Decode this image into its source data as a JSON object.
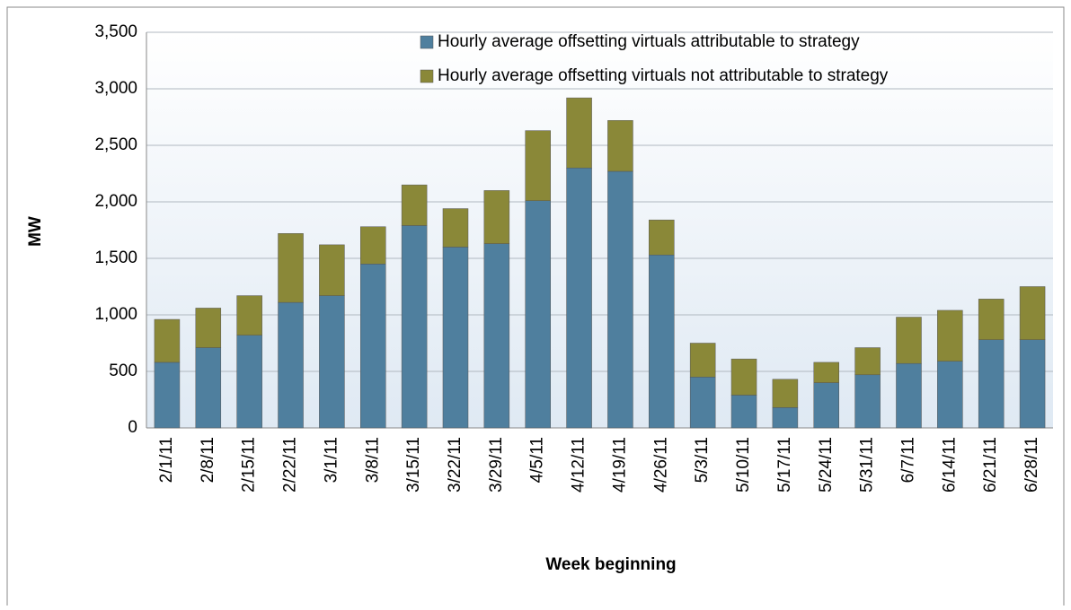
{
  "chart_data": {
    "type": "stacked_bar",
    "x_label": "Week beginning",
    "y_label": "MW",
    "categories": [
      "2/1/11",
      "2/8/11",
      "2/15/11",
      "2/22/11",
      "3/1/11",
      "3/8/11",
      "3/15/11",
      "3/22/11",
      "3/29/11",
      "4/5/11",
      "4/12/11",
      "4/19/11",
      "4/26/11",
      "5/3/11",
      "5/10/11",
      "5/17/11",
      "5/24/11",
      "5/31/11",
      "6/7/11",
      "6/14/11",
      "6/21/11",
      "6/28/11"
    ],
    "series": [
      {
        "name": "Hourly average offsetting virtuals attributable to strategy",
        "color": "#4f7f9e",
        "values": [
          580,
          710,
          820,
          1110,
          1170,
          1450,
          1790,
          1600,
          1630,
          2010,
          2300,
          2270,
          1530,
          450,
          290,
          180,
          400,
          470,
          570,
          590,
          780,
          780
        ]
      },
      {
        "name": "Hourly average offsetting virtuals not attributable to strategy",
        "color": "#8a8838",
        "values": [
          380,
          350,
          350,
          610,
          450,
          330,
          360,
          340,
          470,
          620,
          620,
          450,
          310,
          300,
          320,
          250,
          180,
          240,
          410,
          450,
          360,
          470
        ]
      }
    ],
    "ylim": [
      0,
      3500
    ],
    "yticks": [
      0,
      500,
      {
        "value": 1000,
        "label": "1,000"
      },
      {
        "value": 1500,
        "label": "1,500"
      },
      {
        "value": 2000,
        "label": "2,000"
      },
      {
        "value": 2500,
        "label": "2,500"
      },
      {
        "value": 3000,
        "label": "3,000"
      },
      {
        "value": 3500,
        "label": "3,500"
      }
    ],
    "grid": true,
    "legend": "top-right"
  }
}
